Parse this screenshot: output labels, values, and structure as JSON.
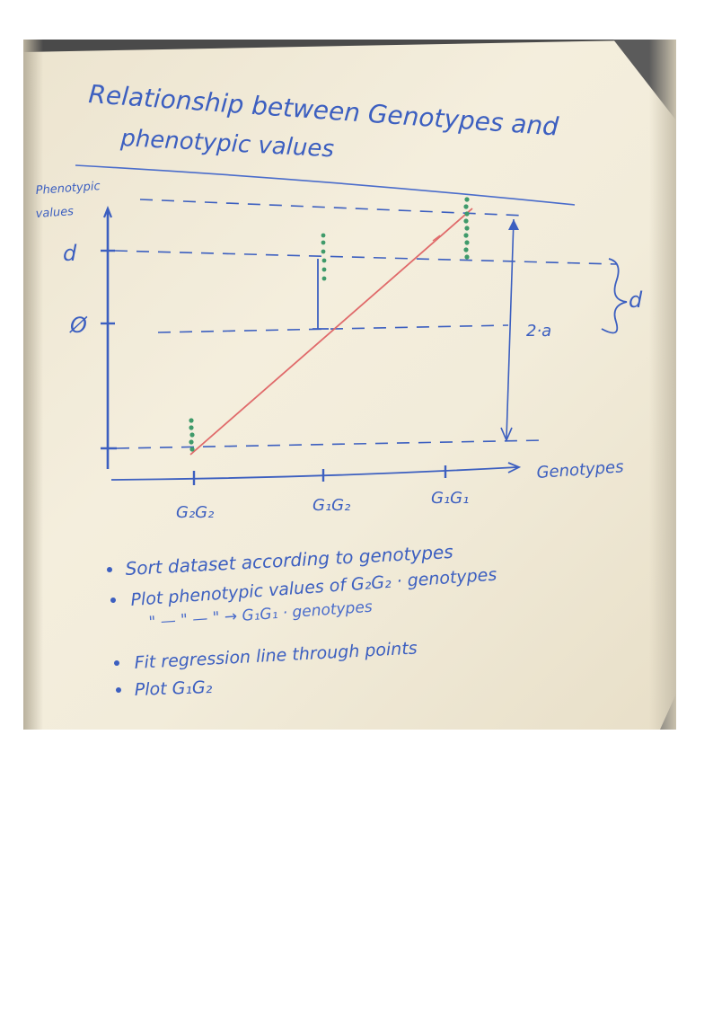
{
  "whiteboard": {
    "title_line1": "Relationship between Genotypes and",
    "title_line2": "phenotypic values",
    "y_axis_label_line1": "Phenotypic",
    "y_axis_label_line2": "values",
    "y_tick_d": "d",
    "y_tick_zero": "Ø",
    "x_axis_label": "Genotypes",
    "x_ticks": [
      "G₂G₂",
      "G₁G₂",
      "G₁G₁"
    ],
    "brace_label": "d",
    "span_label": "2·a",
    "notes": [
      "Sort dataset according to genotypes",
      "Plot phenotypic values of G₂G₂ · genotypes",
      "\"   —  \"   —  \"  →  G₁G₁ · genotypes",
      "Fit regression line through points",
      "Plot G₁G₂"
    ],
    "colors": {
      "marker_blue": "#3c5fc0",
      "regression_red": "#e06a6a",
      "points_green": "#3f9a6a",
      "board": "#f2ecda"
    }
  }
}
